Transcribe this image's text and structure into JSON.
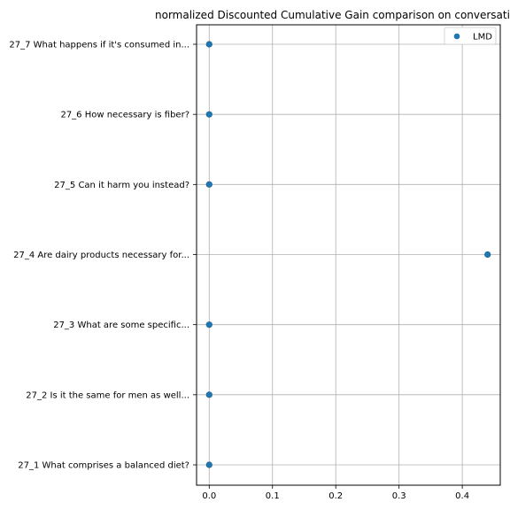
{
  "chart_data": {
    "type": "scatter",
    "title": "normalized Discounted Cumulative Gain comparison on conversation",
    "xlabel": "",
    "ylabel": "",
    "xlim": [
      -0.02,
      0.46
    ],
    "xticks": [
      0.0,
      0.1,
      0.2,
      0.3,
      0.4
    ],
    "xtick_labels": [
      "0.0",
      "0.1",
      "0.2",
      "0.3",
      "0.4"
    ],
    "categories": [
      "27_1 What comprises a balanced diet?",
      "27_2 Is it the same for men as well...",
      "27_3 What are some specific...",
      "27_4 Are dairy products necessary for...",
      "27_5 Can it harm you instead?",
      "27_6 How necessary is fiber?",
      "27_7 What happens if it's consumed in..."
    ],
    "grid": true,
    "legend_position": "top-right",
    "series": [
      {
        "name": "LMD",
        "color": "#1f77b4",
        "values": [
          0.0,
          0.0,
          0.0,
          0.44,
          0.0,
          0.0,
          0.0
        ]
      }
    ]
  }
}
